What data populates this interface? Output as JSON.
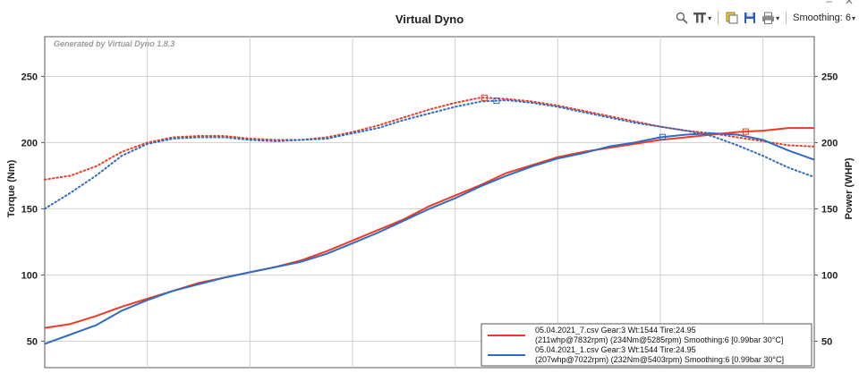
{
  "window": {
    "title": "Virtual Dyno"
  },
  "toolbar": {
    "items": [
      {
        "icon": "zoom-icon"
      },
      {
        "icon": "filter-icon"
      },
      {
        "icon": "copy-icon"
      },
      {
        "icon": "save-icon"
      },
      {
        "icon": "print-icon"
      }
    ],
    "smoothing_label": "Smoothing: 6"
  },
  "chart_data": {
    "type": "line",
    "watermark": "Generated by Virtual Dyno 1.8.3",
    "ylabel_left": "Torque (Nm)",
    "ylabel_right": "Power (WHP)",
    "ylim": [
      30,
      280
    ],
    "yticks": [
      50,
      100,
      150,
      200,
      250
    ],
    "x_range": [
      1000,
      8500
    ],
    "grid": true,
    "legend_position": "bottom-right",
    "series": [
      {
        "name": "05.04.2021_7.csv Gear:3 Wt:1544 Tire:24.95",
        "detail": "(211whp@7832rpm) (234Nm@5285rpm) Smoothing:6 [0.99bar 30°C]",
        "color": "#ee3a24",
        "torque_peak_rpm": 5285,
        "power_peak_rpm": 7832,
        "rpm": [
          1000,
          1250,
          1500,
          1750,
          2000,
          2250,
          2500,
          2750,
          3000,
          3250,
          3500,
          3750,
          4000,
          4250,
          4500,
          4750,
          5000,
          5250,
          5500,
          5750,
          6000,
          6250,
          6500,
          6750,
          7000,
          7250,
          7500,
          7750,
          8000,
          8250,
          8500
        ],
        "torque": [
          172,
          175,
          182,
          193,
          200,
          204,
          205,
          205,
          203,
          202,
          202,
          204,
          208,
          213,
          219,
          225,
          230,
          234,
          233,
          231,
          228,
          224,
          220,
          216,
          212,
          209,
          207,
          204,
          201,
          198,
          197
        ],
        "power": [
          60,
          63,
          69,
          76,
          82,
          88,
          94,
          98,
          102,
          106,
          111,
          118,
          126,
          134,
          142,
          152,
          160,
          168,
          177,
          183,
          189,
          193,
          196,
          199,
          202,
          204,
          206,
          208,
          209,
          211,
          211
        ]
      },
      {
        "name": "05.04.2021_1.csv Gear:3 Wt:1544 Tire:24.95",
        "detail": "(207whp@7022rpm) (232Nm@5403rpm) Smoothing:6 [0.99bar 30°C]",
        "color": "#2f6cc2",
        "torque_peak_rpm": 5403,
        "power_peak_rpm": 7022,
        "rpm": [
          1000,
          1250,
          1500,
          1750,
          2000,
          2250,
          2500,
          2750,
          3000,
          3250,
          3500,
          3750,
          4000,
          4250,
          4500,
          4750,
          5000,
          5250,
          5500,
          5750,
          6000,
          6250,
          6500,
          6750,
          7000,
          7250,
          7500,
          7750,
          8000,
          8250,
          8500
        ],
        "torque": [
          150,
          162,
          175,
          190,
          199,
          203,
          204,
          204,
          202,
          201,
          202,
          203,
          207,
          211,
          217,
          222,
          227,
          231,
          232,
          230,
          227,
          223,
          219,
          215,
          212,
          209,
          205,
          198,
          190,
          181,
          174
        ],
        "power": [
          48,
          55,
          62,
          73,
          81,
          88,
          93,
          98,
          102,
          106,
          110,
          116,
          124,
          132,
          141,
          150,
          158,
          167,
          175,
          182,
          188,
          192,
          197,
          200,
          204,
          206,
          207,
          206,
          202,
          194,
          187
        ]
      }
    ]
  }
}
